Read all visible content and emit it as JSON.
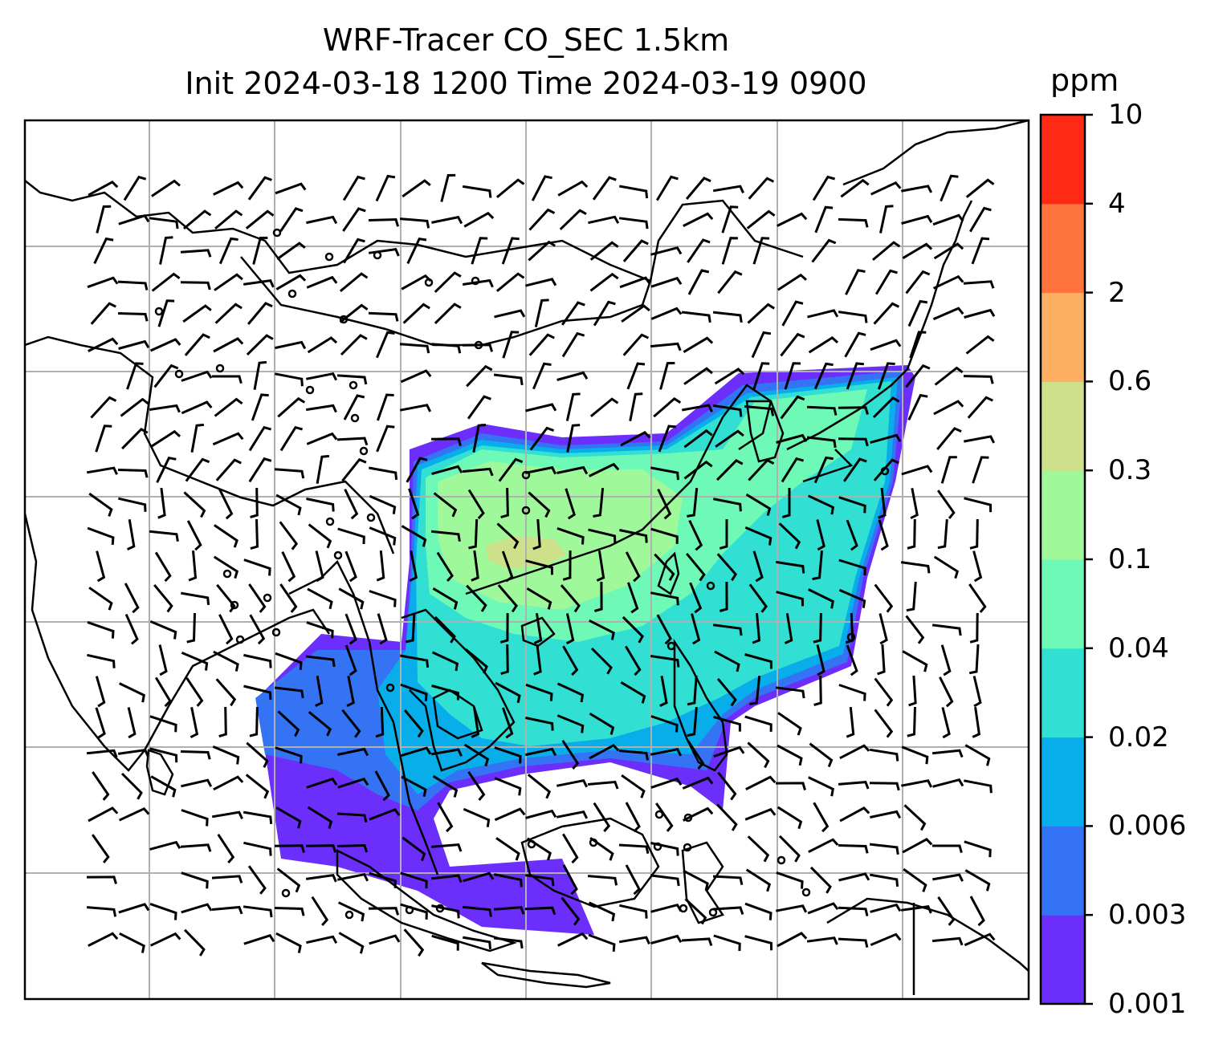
{
  "title": {
    "line1": "WRF-Tracer CO_SEC 1.5km",
    "line2": "Init 2024-03-18 1200 Time 2024-03-19 0900"
  },
  "colorbar": {
    "unit": "ppm",
    "levels": [
      "0.001",
      "0.003",
      "0.006",
      "0.02",
      "0.04",
      "0.1",
      "0.3",
      "0.6",
      "2",
      "4",
      "10"
    ],
    "colors": [
      "#6b2efb",
      "#3573f5",
      "#08aeea",
      "#32dfd3",
      "#6ef9b6",
      "#9ff99b",
      "#cfe08a",
      "#fdb061",
      "#ff733c",
      "#ff2a15"
    ]
  },
  "map": {
    "gridlines": true,
    "wind_barbs": true,
    "coastlines": true
  }
}
